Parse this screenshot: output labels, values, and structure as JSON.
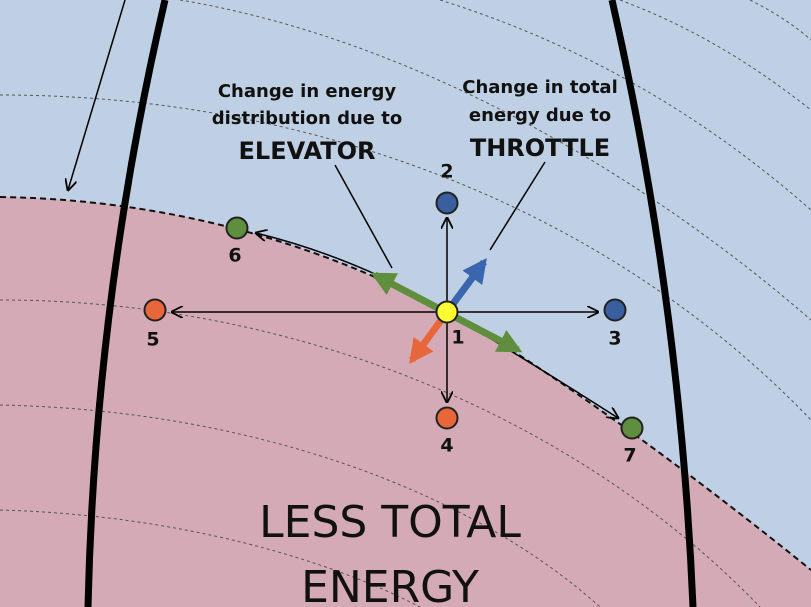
{
  "annotations": [
    {
      "lines": [
        "Change in energy",
        "distribution due to"
      ],
      "emphasis": "ELEVATOR"
    },
    {
      "lines": [
        "Change in total",
        "energy due to"
      ],
      "emphasis": "THROTTLE"
    }
  ],
  "nodes": [
    {
      "label": "1"
    },
    {
      "label": "2"
    },
    {
      "label": "3"
    },
    {
      "label": "4"
    },
    {
      "label": "5"
    },
    {
      "label": "6"
    },
    {
      "label": "7"
    }
  ],
  "region_label": [
    "LESS TOTAL",
    "ENERGY"
  ]
}
